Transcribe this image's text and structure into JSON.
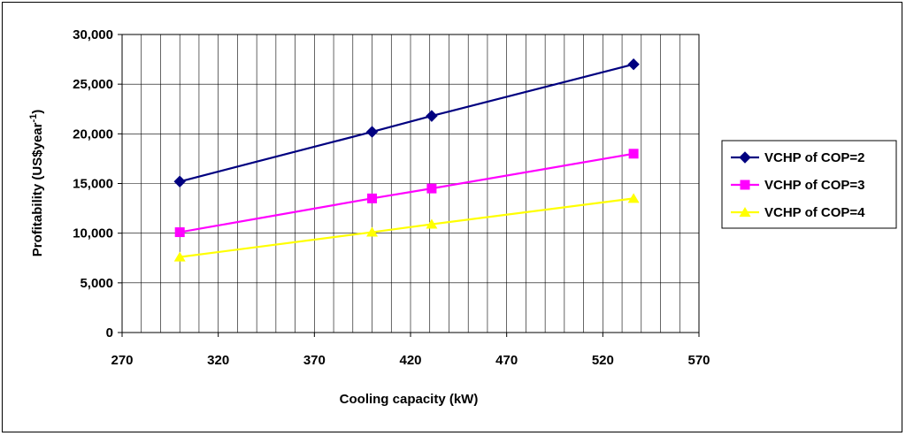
{
  "chart_data": {
    "type": "line",
    "title": "",
    "xlabel": "Cooling capacity (kW)",
    "ylabel_main": "Profitability (US$year",
    "ylabel_sup": "-1",
    "ylabel_tail": ")",
    "xlim": [
      270,
      570
    ],
    "ylim": [
      0,
      30000
    ],
    "x_ticks": [
      270,
      320,
      370,
      420,
      470,
      520,
      570
    ],
    "x_tick_labels": [
      "270",
      "320",
      "370",
      "420",
      "470",
      "520",
      "570"
    ],
    "x_minor_step": 10,
    "y_ticks": [
      0,
      5000,
      10000,
      15000,
      20000,
      25000,
      30000
    ],
    "y_tick_labels": [
      "0",
      "5,000",
      "10,000",
      "15,000",
      "20,000",
      "25,000",
      "30,000"
    ],
    "grid": true,
    "legend_position": "right",
    "series": [
      {
        "name": "VCHP of COP=2",
        "color": "#000080",
        "marker": "diamond",
        "x": [
          300,
          400,
          431,
          536
        ],
        "values": [
          15200,
          20200,
          21800,
          27000
        ]
      },
      {
        "name": "VCHP of COP=3",
        "color": "#FF00FF",
        "marker": "square",
        "x": [
          300,
          400,
          431,
          536
        ],
        "values": [
          10100,
          13500,
          14500,
          18000
        ]
      },
      {
        "name": "VCHP of COP=4",
        "color": "#FFFF00",
        "marker": "triangle",
        "x": [
          300,
          400,
          431,
          536
        ],
        "values": [
          7600,
          10100,
          10900,
          13500
        ]
      }
    ]
  }
}
